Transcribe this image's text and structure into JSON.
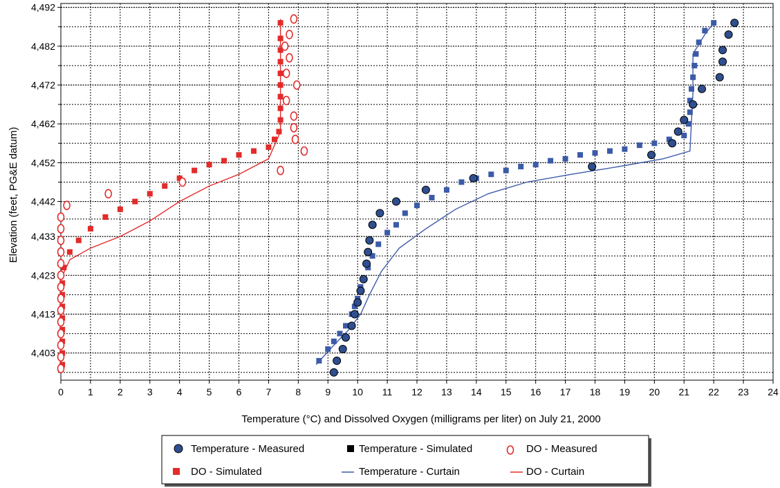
{
  "chart_data": {
    "type": "scatter",
    "xlabel": "Temperature (°C) and Dissolved Oxygen (milligrams per liter) on July 21, 2000",
    "ylabel": "Elevation (feet, PG&E datum)",
    "xlim": [
      0,
      24
    ],
    "ylim": [
      4396,
      4493
    ],
    "x_ticks": [
      "0",
      "1",
      "2",
      "3",
      "4",
      "5",
      "6",
      "7",
      "8",
      "9",
      "10",
      "11",
      "12",
      "13",
      "14",
      "15",
      "16",
      "17",
      "18",
      "19",
      "20",
      "21",
      "22",
      "23",
      "24"
    ],
    "y_ticks": [
      {
        "value": 4403,
        "label": "4,403"
      },
      {
        "value": 4413,
        "label": "4,413"
      },
      {
        "value": 4423,
        "label": "4,423"
      },
      {
        "value": 4433,
        "label": "4,433"
      },
      {
        "value": 4442,
        "label": "4,442"
      },
      {
        "value": 4452,
        "label": "4,452"
      },
      {
        "value": 4462,
        "label": "4,462"
      },
      {
        "value": 4472,
        "label": "4,472"
      },
      {
        "value": 4482,
        "label": "4,482"
      },
      {
        "value": 4492,
        "label": "4,492"
      }
    ],
    "grid": true,
    "legend_position": "bottom",
    "series": [
      {
        "name": "Temperature - Measured",
        "marker": "circle",
        "color": "#2f4f8f",
        "points": [
          [
            9.2,
            4398
          ],
          [
            9.3,
            4401
          ],
          [
            9.5,
            4404
          ],
          [
            9.6,
            4407
          ],
          [
            9.8,
            4410
          ],
          [
            9.9,
            4413
          ],
          [
            10.0,
            4416
          ],
          [
            10.1,
            4419
          ],
          [
            10.2,
            4422
          ],
          [
            10.3,
            4426
          ],
          [
            10.35,
            4429
          ],
          [
            10.4,
            4432
          ],
          [
            10.5,
            4436
          ],
          [
            10.75,
            4439
          ],
          [
            11.3,
            4442
          ],
          [
            12.3,
            4445
          ],
          [
            13.9,
            4448
          ],
          [
            17.9,
            4451
          ],
          [
            19.9,
            4454
          ],
          [
            20.6,
            4457
          ],
          [
            20.8,
            4460
          ],
          [
            21.0,
            4463
          ],
          [
            21.3,
            4467
          ],
          [
            21.6,
            4471
          ],
          [
            22.2,
            4474
          ],
          [
            22.3,
            4478
          ],
          [
            22.3,
            4481
          ],
          [
            22.5,
            4485
          ],
          [
            22.7,
            4488
          ]
        ]
      },
      {
        "name": "Temperature - Simulated",
        "marker": "square",
        "color": "#3b5ba8",
        "points": [
          [
            8.7,
            4401
          ],
          [
            9.0,
            4404
          ],
          [
            9.2,
            4406
          ],
          [
            9.4,
            4408
          ],
          [
            9.6,
            4410
          ],
          [
            9.8,
            4413
          ],
          [
            9.9,
            4415
          ],
          [
            10.0,
            4417
          ],
          [
            10.1,
            4420
          ],
          [
            10.2,
            4422
          ],
          [
            10.35,
            4425
          ],
          [
            10.5,
            4428
          ],
          [
            10.7,
            4431
          ],
          [
            11.0,
            4434
          ],
          [
            11.3,
            4436
          ],
          [
            11.6,
            4439
          ],
          [
            12.0,
            4441
          ],
          [
            12.5,
            4443
          ],
          [
            13.0,
            4445
          ],
          [
            13.5,
            4447
          ],
          [
            14.0,
            4448
          ],
          [
            14.5,
            4449
          ],
          [
            15.0,
            4450
          ],
          [
            15.5,
            4451
          ],
          [
            16.0,
            4451.5
          ],
          [
            16.5,
            4452.5
          ],
          [
            17.0,
            4453
          ],
          [
            17.5,
            4454
          ],
          [
            18.0,
            4454.5
          ],
          [
            18.5,
            4455
          ],
          [
            19.0,
            4455.5
          ],
          [
            19.5,
            4456.5
          ],
          [
            20.0,
            4457
          ],
          [
            20.5,
            4458
          ],
          [
            21.0,
            4459
          ],
          [
            21.15,
            4462
          ],
          [
            21.2,
            4465
          ],
          [
            21.2,
            4468
          ],
          [
            21.25,
            4471
          ],
          [
            21.3,
            4474
          ],
          [
            21.35,
            4477
          ],
          [
            21.4,
            4480
          ],
          [
            21.5,
            4483
          ],
          [
            21.7,
            4486
          ],
          [
            22.0,
            4488
          ]
        ]
      },
      {
        "name": "DO - Measured",
        "marker": "open-ellipse",
        "color": "#e32b2b",
        "points": [
          [
            0.0,
            4399
          ],
          [
            0.0,
            4402
          ],
          [
            0.0,
            4405
          ],
          [
            0.0,
            4408
          ],
          [
            0.0,
            4411
          ],
          [
            0.0,
            4414
          ],
          [
            0.0,
            4417
          ],
          [
            0.0,
            4420
          ],
          [
            0.0,
            4423
          ],
          [
            0.0,
            4426
          ],
          [
            0.0,
            4429
          ],
          [
            0.0,
            4432
          ],
          [
            0.0,
            4435
          ],
          [
            0.0,
            4438
          ],
          [
            0.2,
            4441
          ],
          [
            1.6,
            4444
          ],
          [
            4.1,
            4447
          ],
          [
            7.4,
            4450
          ],
          [
            8.2,
            4455
          ],
          [
            7.9,
            4458
          ],
          [
            7.85,
            4461
          ],
          [
            7.85,
            4464
          ],
          [
            7.6,
            4468
          ],
          [
            7.95,
            4472
          ],
          [
            7.6,
            4475
          ],
          [
            7.7,
            4479
          ],
          [
            7.55,
            4482
          ],
          [
            7.7,
            4485
          ],
          [
            7.85,
            4489
          ]
        ]
      },
      {
        "name": "DO - Simulated",
        "marker": "square",
        "color": "#e32b2b",
        "points": [
          [
            0.05,
            4400
          ],
          [
            0.05,
            4403
          ],
          [
            0.05,
            4406
          ],
          [
            0.05,
            4409
          ],
          [
            0.05,
            4412
          ],
          [
            0.05,
            4415
          ],
          [
            0.05,
            4418
          ],
          [
            0.05,
            4421
          ],
          [
            0.1,
            4425
          ],
          [
            0.3,
            4429
          ],
          [
            0.6,
            4432
          ],
          [
            1.0,
            4435
          ],
          [
            1.5,
            4438
          ],
          [
            2.0,
            4440
          ],
          [
            2.5,
            4442
          ],
          [
            3.0,
            4444
          ],
          [
            3.5,
            4446
          ],
          [
            4.0,
            4448
          ],
          [
            4.5,
            4450
          ],
          [
            5.0,
            4451.5
          ],
          [
            5.5,
            4452.5
          ],
          [
            6.0,
            4454
          ],
          [
            6.5,
            4455
          ],
          [
            7.0,
            4456
          ],
          [
            7.2,
            4458
          ],
          [
            7.35,
            4460
          ],
          [
            7.4,
            4463
          ],
          [
            7.4,
            4466
          ],
          [
            7.4,
            4469
          ],
          [
            7.4,
            4472
          ],
          [
            7.4,
            4475
          ],
          [
            7.4,
            4478
          ],
          [
            7.4,
            4481
          ],
          [
            7.4,
            4484
          ],
          [
            7.4,
            4488
          ]
        ]
      },
      {
        "name": "Temperature - Curtain",
        "marker": "line",
        "color": "#3b5ba8",
        "points": [
          [
            8.6,
            4400
          ],
          [
            9.2,
            4405
          ],
          [
            9.7,
            4409
          ],
          [
            10.1,
            4413
          ],
          [
            10.4,
            4418
          ],
          [
            10.8,
            4424
          ],
          [
            11.4,
            4430
          ],
          [
            12.3,
            4435
          ],
          [
            13.3,
            4440
          ],
          [
            14.4,
            4444
          ],
          [
            15.7,
            4447
          ],
          [
            17.2,
            4449
          ],
          [
            18.8,
            4451
          ],
          [
            20.3,
            4453
          ],
          [
            21.2,
            4455
          ],
          [
            21.3,
            4470
          ],
          [
            21.3,
            4480
          ],
          [
            21.7,
            4485
          ],
          [
            22.0,
            4488
          ]
        ]
      },
      {
        "name": "DO - Curtain",
        "marker": "line",
        "color": "#e32b2b",
        "points": [
          [
            0.0,
            4422
          ],
          [
            0.3,
            4427
          ],
          [
            1.0,
            4430
          ],
          [
            2.0,
            4433
          ],
          [
            3.0,
            4437
          ],
          [
            4.0,
            4442
          ],
          [
            5.0,
            4446
          ],
          [
            6.0,
            4449
          ],
          [
            7.0,
            4453
          ],
          [
            7.4,
            4460
          ],
          [
            7.4,
            4470
          ],
          [
            7.4,
            4480
          ],
          [
            7.4,
            4489
          ]
        ]
      }
    ]
  },
  "legend": {
    "items": [
      {
        "label": "Temperature - Measured"
      },
      {
        "label": "Temperature - Simulated"
      },
      {
        "label": "DO - Measured"
      },
      {
        "label": "DO - Simulated"
      },
      {
        "label": "Temperature - Curtain"
      },
      {
        "label": "DO - Curtain"
      }
    ]
  }
}
